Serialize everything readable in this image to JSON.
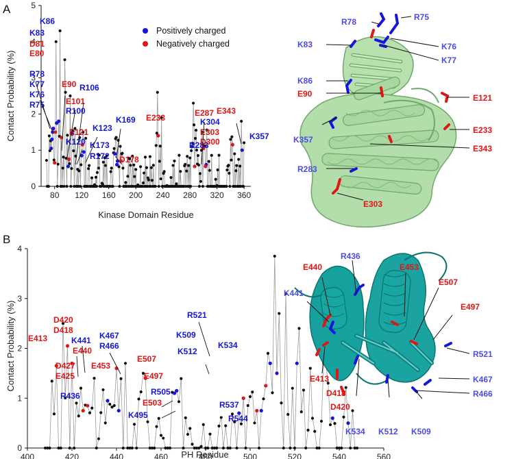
{
  "colors": {
    "positive": "#1515dd",
    "negative": "#e01515",
    "neutral": "#111111",
    "line": "#9a9a9a",
    "kinase_ribbon": "#a8d8a0",
    "kinase_ribbon_dark": "#6fa86a",
    "ph_ribbon": "#1aa3a0",
    "ph_ribbon_dark": "#0b7472"
  },
  "panels": {
    "A": {
      "letter": "A"
    },
    "B": {
      "letter": "B"
    }
  },
  "legend": {
    "positive_label": "Positively charged",
    "negative_label": "Negatively charged"
  },
  "structure_labels": {
    "A": [
      {
        "text": "R75",
        "charge": "positive"
      },
      {
        "text": "R78",
        "charge": "positive"
      },
      {
        "text": "K83",
        "charge": "positive"
      },
      {
        "text": "K76",
        "charge": "positive"
      },
      {
        "text": "K77",
        "charge": "positive"
      },
      {
        "text": "K86",
        "charge": "positive"
      },
      {
        "text": "E90",
        "charge": "negative"
      },
      {
        "text": "E121",
        "charge": "negative"
      },
      {
        "text": "K357",
        "charge": "positive"
      },
      {
        "text": "E233",
        "charge": "negative"
      },
      {
        "text": "E343",
        "charge": "negative"
      },
      {
        "text": "R283",
        "charge": "positive"
      },
      {
        "text": "E303",
        "charge": "negative"
      }
    ],
    "B": [
      {
        "text": "R436",
        "charge": "positive"
      },
      {
        "text": "E440",
        "charge": "negative"
      },
      {
        "text": "K441",
        "charge": "positive"
      },
      {
        "text": "E453",
        "charge": "negative"
      },
      {
        "text": "E507",
        "charge": "negative"
      },
      {
        "text": "E497",
        "charge": "negative"
      },
      {
        "text": "R521",
        "charge": "positive"
      },
      {
        "text": "K467",
        "charge": "positive"
      },
      {
        "text": "R466",
        "charge": "positive"
      },
      {
        "text": "E413",
        "charge": "negative"
      },
      {
        "text": "D418",
        "charge": "negative"
      },
      {
        "text": "D420",
        "charge": "negative"
      },
      {
        "text": "K534",
        "charge": "positive"
      },
      {
        "text": "K512",
        "charge": "positive"
      },
      {
        "text": "K509",
        "charge": "positive"
      }
    ]
  },
  "chart_data": [
    {
      "type": "scatter",
      "title": "",
      "xlabel": "Kinase Domain Residue",
      "ylabel": "Contact Probability (%)",
      "xlim": [
        60,
        370
      ],
      "ylim": [
        0,
        5
      ],
      "xticks": [
        80,
        120,
        160,
        200,
        240,
        280,
        320,
        360
      ],
      "yticks": [
        0,
        1,
        2,
        3,
        4,
        5
      ],
      "legend": [
        "Positively charged",
        "Negatively charged"
      ],
      "series": [
        {
          "name": "Positively charged",
          "color": "positive",
          "points": [
            {
              "label": "R75",
              "x": 75,
              "y": 1.05
            },
            {
              "label": "K76",
              "x": 76,
              "y": 1.3
            },
            {
              "label": "K77",
              "x": 77,
              "y": 1.5
            },
            {
              "label": "R78",
              "x": 78,
              "y": 1.6
            },
            {
              "label": "K83",
              "x": 83,
              "y": 1.75
            },
            {
              "label": "K86",
              "x": 86,
              "y": 1.8
            },
            {
              "label": "R100",
              "x": 100,
              "y": 0.55
            },
            {
              "label": "R106",
              "x": 106,
              "y": 1.45
            },
            {
              "label": "K120",
              "x": 120,
              "y": 0.85
            },
            {
              "label": "K123",
              "x": 123,
              "y": 0.95
            },
            {
              "label": "K169",
              "x": 169,
              "y": 0.9
            },
            {
              "label": "R172",
              "x": 172,
              "y": 0.6
            },
            {
              "label": "K173",
              "x": 173,
              "y": 0.7
            },
            {
              "label": "R283",
              "x": 283,
              "y": 1.1
            },
            {
              "label": "K304",
              "x": 304,
              "y": 0.6
            },
            {
              "label": "K357",
              "x": 357,
              "y": 1.0
            }
          ]
        },
        {
          "name": "Negatively charged",
          "color": "negative",
          "points": [
            {
              "label": "E80",
              "x": 80,
              "y": 0.65
            },
            {
              "label": "D81",
              "x": 81,
              "y": 1.5
            },
            {
              "label": "E90",
              "x": 90,
              "y": 1.35
            },
            {
              "label": "E101",
              "x": 101,
              "y": 0.75
            },
            {
              "label": "E121",
              "x": 121,
              "y": 1.15
            },
            {
              "label": "D178",
              "x": 178,
              "y": 0.7
            },
            {
              "label": "E233",
              "x": 233,
              "y": 1.4
            },
            {
              "label": "E287",
              "x": 287,
              "y": 0.55
            },
            {
              "label": "D300",
              "x": 300,
              "y": 1.05
            },
            {
              "label": "E303",
              "x": 303,
              "y": 0.55
            },
            {
              "label": "E343",
              "x": 343,
              "y": 1.15
            }
          ]
        }
      ],
      "annotations": [
        "K86",
        "K83",
        "D81",
        "E80",
        "R78",
        "K77",
        "K76",
        "R75",
        "E90",
        "R106",
        "E101",
        "R100",
        "E121",
        "K120",
        "K123",
        "K169",
        "K173",
        "R172",
        "D178",
        "E233",
        "E287",
        "R283",
        "K304",
        "E303",
        "D300",
        "E343",
        "K357"
      ]
    },
    {
      "type": "scatter",
      "title": "",
      "xlabel": "PH Residue",
      "ylabel": "Contact Probability (%)",
      "xlim": [
        400,
        560
      ],
      "ylim": [
        0,
        4
      ],
      "xticks": [
        400,
        420,
        440,
        460,
        480,
        500,
        520,
        540,
        560
      ],
      "yticks": [
        0,
        1,
        2,
        3,
        4
      ],
      "series": [
        {
          "name": "Positively charged",
          "color": "positive",
          "points": [
            {
              "label": "R436",
              "x": 436,
              "y": 0.95
            },
            {
              "label": "K441",
              "x": 441,
              "y": 0.75
            },
            {
              "label": "R466",
              "x": 466,
              "y": 1.1
            },
            {
              "label": "K467",
              "x": 467,
              "y": 1.15
            },
            {
              "label": "K495",
              "x": 495,
              "y": 0.7
            },
            {
              "label": "R505",
              "x": 505,
              "y": 0.75
            },
            {
              "label": "K509",
              "x": 509,
              "y": 1.7
            },
            {
              "label": "K512",
              "x": 512,
              "y": 1.5
            },
            {
              "label": "R521",
              "x": 521,
              "y": 1.7
            },
            {
              "label": "K534",
              "x": 534,
              "y": 1.7
            },
            {
              "label": "R537",
              "x": 537,
              "y": 0.6
            },
            {
              "label": "R544",
              "x": 544,
              "y": 0.5
            }
          ]
        },
        {
          "name": "Negatively charged",
          "color": "negative",
          "points": [
            {
              "label": "E413",
              "x": 413,
              "y": 1.65
            },
            {
              "label": "D418",
              "x": 418,
              "y": 2.05
            },
            {
              "label": "D420",
              "x": 420,
              "y": 1.7
            },
            {
              "label": "E425",
              "x": 425,
              "y": 0.75
            },
            {
              "label": "D427",
              "x": 427,
              "y": 0.85
            },
            {
              "label": "E440",
              "x": 440,
              "y": 1.6
            },
            {
              "label": "E453",
              "x": 453,
              "y": 1.4
            },
            {
              "label": "E497",
              "x": 497,
              "y": 1.0
            },
            {
              "label": "E503",
              "x": 503,
              "y": 0.75
            },
            {
              "label": "E507",
              "x": 507,
              "y": 1.25
            }
          ]
        }
      ],
      "annotations": [
        "D420",
        "D418",
        "E413",
        "K441",
        "E440",
        "D427",
        "E425",
        "E453",
        "R436",
        "K467",
        "R466",
        "E507",
        "E497",
        "R505",
        "E503",
        "K495",
        "R521",
        "K509",
        "K512",
        "K534",
        "R537",
        "R544"
      ]
    }
  ]
}
